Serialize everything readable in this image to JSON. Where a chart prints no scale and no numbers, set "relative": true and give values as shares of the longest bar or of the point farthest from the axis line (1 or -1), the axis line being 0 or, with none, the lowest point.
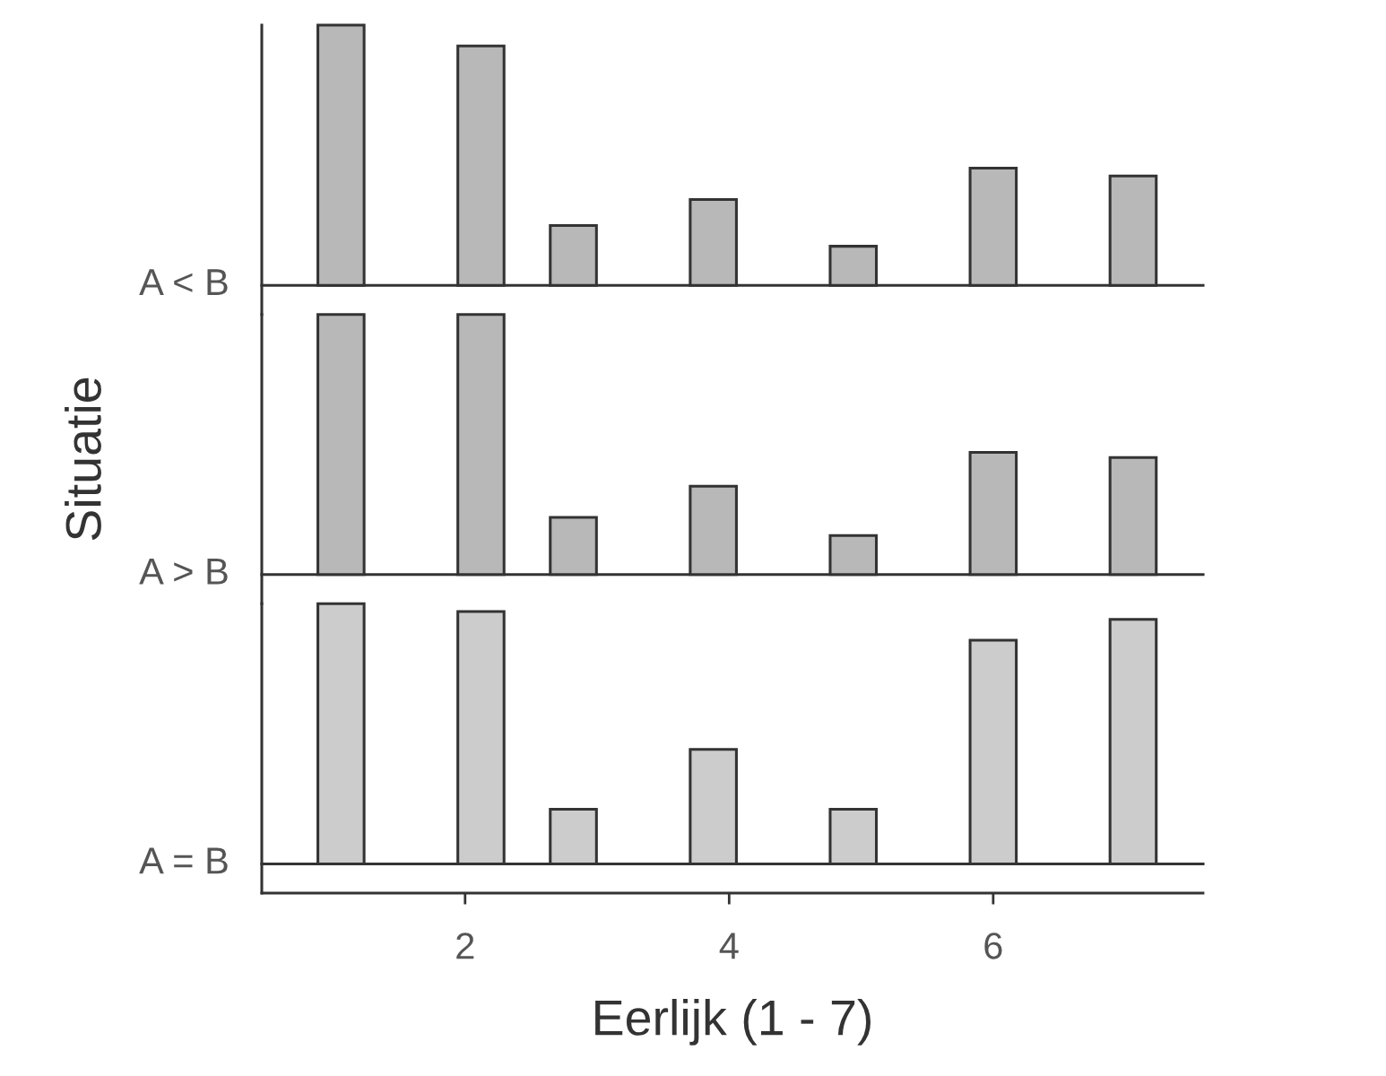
{
  "chart_data": [
    {
      "type": "bar",
      "ylabel": "A < B",
      "relative": true,
      "color": "#b8b8b8",
      "x": [
        1.06,
        2.12,
        2.82,
        3.88,
        4.94,
        6.0,
        7.06
      ],
      "values": [
        1,
        0.92,
        0.23,
        0.33,
        0.15,
        0.45,
        0.42
      ],
      "xlim": [
        0.46,
        7.59
      ],
      "tick_labels": false
    },
    {
      "type": "bar",
      "ylabel": "A > B",
      "relative": true,
      "color": "#b8b8b8",
      "annotations": [
        "Situatie"
      ],
      "x": [
        1.06,
        2.12,
        2.82,
        3.88,
        4.94,
        6.0,
        7.06
      ],
      "values": [
        1,
        1,
        0.22,
        0.34,
        0.15,
        0.47,
        0.45
      ],
      "xlim": [
        0.46,
        7.59
      ],
      "tick_labels": false
    },
    {
      "type": "bar",
      "ylabel": "A = B",
      "xlabel": "Eerlijk (1 - 7)",
      "relative": true,
      "color": "#cccccc",
      "x": [
        1.06,
        2.12,
        2.82,
        3.88,
        4.94,
        6.0,
        7.06
      ],
      "values": [
        1,
        0.97,
        0.21,
        0.44,
        0.21,
        0.86,
        0.94
      ],
      "xlim": [
        0.46,
        7.59
      ],
      "xticks": [
        2,
        4,
        6
      ],
      "tick_labels": "x"
    }
  ]
}
